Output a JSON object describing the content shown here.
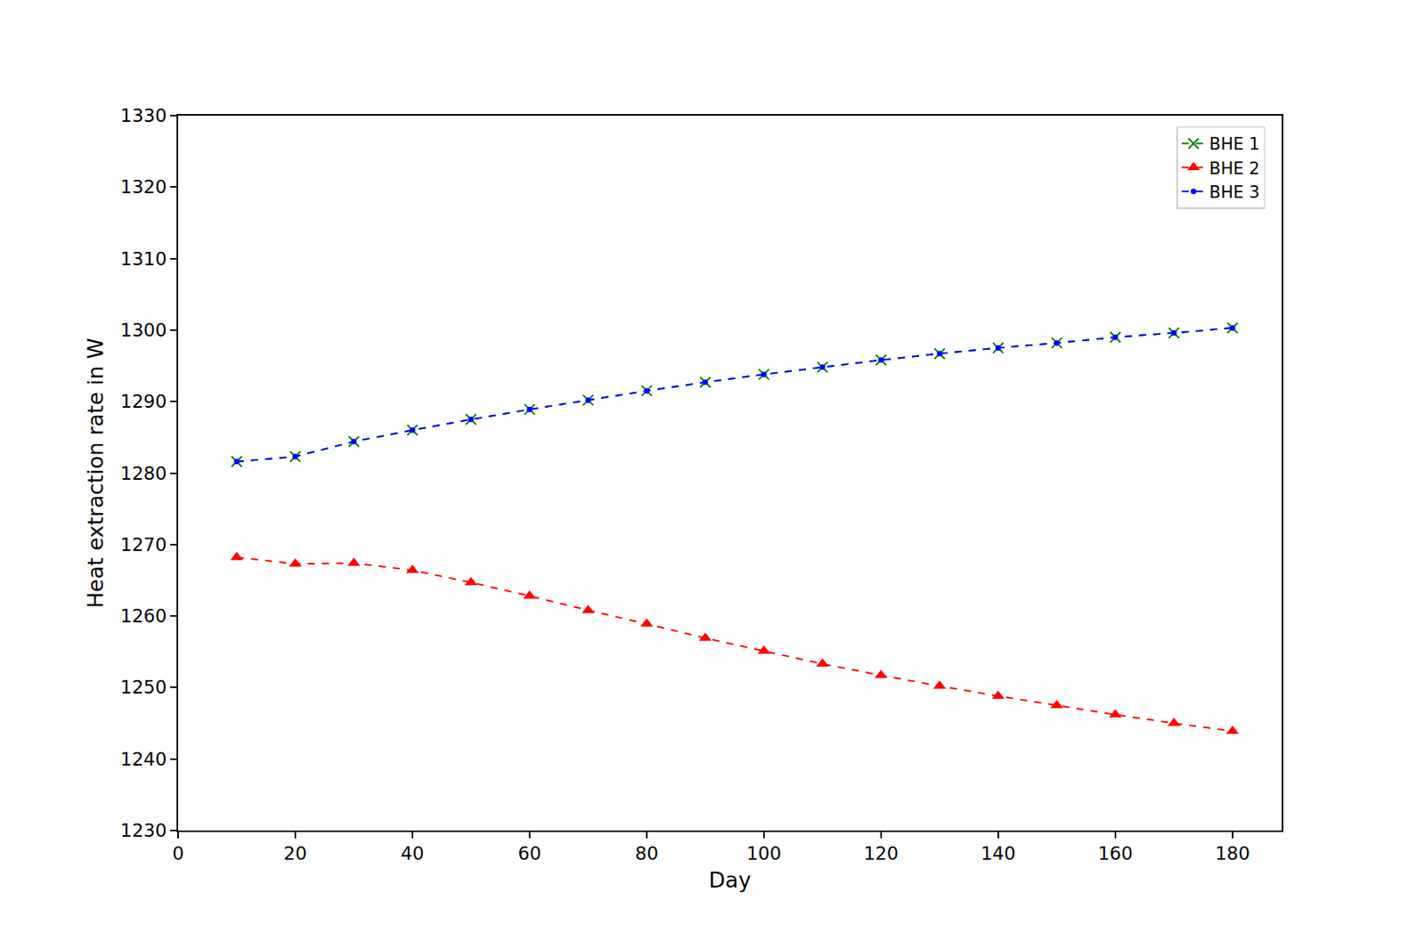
{
  "chart_data": {
    "type": "line",
    "x_label": "Day",
    "y_label": "Heat extraction rate in W",
    "x": [
      10,
      20,
      30,
      40,
      50,
      60,
      70,
      80,
      90,
      100,
      110,
      120,
      130,
      140,
      150,
      160,
      170,
      180
    ],
    "series": [
      {
        "name": "BHE 1",
        "color": "#008000",
        "marker": "x",
        "line_style": "dashed",
        "values": [
          1281.6,
          1282.3,
          1284.4,
          1286.0,
          1287.5,
          1288.9,
          1290.2,
          1291.5,
          1292.7,
          1293.8,
          1294.8,
          1295.8,
          1296.7,
          1297.5,
          1298.2,
          1299.0,
          1299.6,
          1300.3
        ]
      },
      {
        "name": "BHE 2",
        "color": "#ff0000",
        "marker": "triangle",
        "line_style": "dashed",
        "values": [
          1268.2,
          1267.3,
          1267.4,
          1266.4,
          1264.7,
          1262.8,
          1260.8,
          1258.9,
          1256.9,
          1255.1,
          1253.3,
          1251.7,
          1250.2,
          1248.8,
          1247.5,
          1246.2,
          1245.0,
          1243.9
        ]
      },
      {
        "name": "BHE 3",
        "color": "#0000ff",
        "marker": "dot",
        "line_style": "dashed",
        "values": [
          1281.6,
          1282.3,
          1284.4,
          1286.0,
          1287.5,
          1288.9,
          1290.2,
          1291.5,
          1292.7,
          1293.8,
          1294.8,
          1295.8,
          1296.7,
          1297.5,
          1298.2,
          1299.0,
          1299.6,
          1300.3
        ]
      }
    ],
    "xlim": [
      0,
      188.4
    ],
    "xticks": [
      0,
      20,
      40,
      60,
      80,
      100,
      120,
      140,
      160,
      180
    ],
    "ylim": [
      1230,
      1330
    ],
    "yticks": [
      1230,
      1240,
      1250,
      1260,
      1270,
      1280,
      1290,
      1300,
      1310,
      1320,
      1330
    ],
    "grid": false,
    "legend": "upper right"
  }
}
